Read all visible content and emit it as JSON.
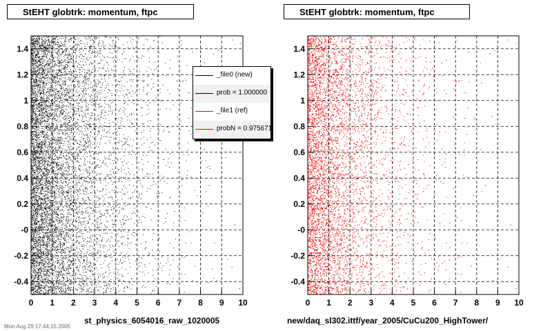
{
  "left_panel": {
    "title": "StEHT globtrk: momentum, ftpc",
    "xcaption": "st_physics_6054016_raw_1020005",
    "legend": [
      {
        "label": "_file0 (new)",
        "color": "#000000"
      },
      {
        "label": "prob = 1.000000",
        "color": "#000000"
      },
      {
        "label": "_file1 (ref)",
        "color": "#ff0000"
      },
      {
        "label": "probN = 0.975671",
        "color": "#ff0000"
      }
    ]
  },
  "right_panel": {
    "title": "StEHT globtrk: momentum, ftpc",
    "xcaption": "new/daq_sl302.ittf/year_2005/CuCu200_HighTower/"
  },
  "footer": "Mon Aug 29 17:44:15 2005",
  "chart_data": [
    {
      "type": "scatter",
      "title": "StEHT globtrk: momentum, ftpc",
      "xlabel": "st_physics_6054016_raw_1020005",
      "ylabel": "",
      "xlim": [
        0,
        10
      ],
      "ylim": [
        -0.5,
        1.5
      ],
      "x_ticks": [
        "0",
        "1",
        "2",
        "3",
        "4",
        "5",
        "6",
        "7",
        "8",
        "9",
        "10"
      ],
      "y_ticks": [
        "-0.4",
        "-0.2",
        "-0",
        "0.2",
        "0.4",
        "0.6",
        "0.8",
        "1",
        "1.2",
        "1.4"
      ],
      "grid": true,
      "series": [
        {
          "name": "_file0 (new)",
          "color": "#000000",
          "density": "concentrated near x=0-2, decreasing toward x=10, uniform in y"
        }
      ],
      "legend_position": "top-right"
    },
    {
      "type": "scatter",
      "title": "StEHT globtrk: momentum, ftpc",
      "xlabel": "new/daq_sl302.ittf/year_2005/CuCu200_HighTower/",
      "ylabel": "",
      "xlim": [
        0,
        10
      ],
      "ylim": [
        -0.5,
        1.5
      ],
      "x_ticks": [
        "0",
        "1",
        "2",
        "3",
        "4",
        "5",
        "6",
        "7",
        "8",
        "9",
        "10"
      ],
      "y_ticks": [
        "-0.4",
        "-0.2",
        "-0",
        "0.2",
        "0.4",
        "0.6",
        "0.8",
        "1",
        "1.2",
        "1.4"
      ],
      "grid": true,
      "series": [
        {
          "name": "_file1 (ref)",
          "color": "#ff0000",
          "density": "concentrated near x=0-2, decreasing toward x=10, uniform in y"
        }
      ]
    }
  ]
}
